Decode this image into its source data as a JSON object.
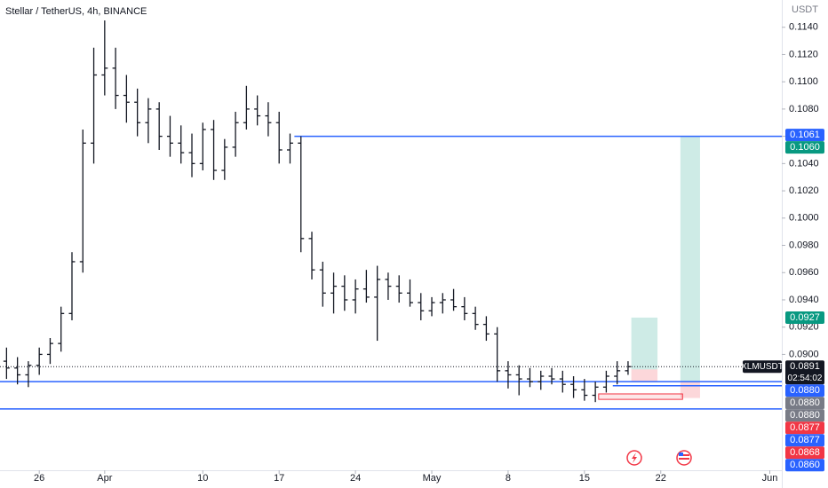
{
  "chart_data": {
    "type": "candlestick",
    "title": "Stellar / TetherUS, 4h, BINANCE",
    "axis_unit": "USDT",
    "x": [
      -3,
      -2,
      -1,
      0,
      1,
      2,
      3,
      4,
      5,
      6,
      7,
      8,
      9,
      10,
      11,
      12,
      13,
      14,
      15,
      16,
      17,
      18,
      19,
      20,
      21,
      22,
      23,
      24,
      25,
      26,
      27,
      28,
      29,
      30,
      31,
      32,
      33,
      34,
      35,
      36,
      37,
      38,
      39,
      40,
      41,
      42,
      43,
      44,
      45,
      46,
      47,
      48,
      49,
      50,
      51,
      52,
      53,
      54
    ],
    "open": [
      0.0895,
      0.089,
      0.0885,
      0.0892,
      0.09,
      0.0908,
      0.093,
      0.0968,
      0.1055,
      0.1105,
      0.111,
      0.109,
      0.1085,
      0.107,
      0.108,
      0.106,
      0.1055,
      0.1048,
      0.104,
      0.1065,
      0.1035,
      0.1052,
      0.107,
      0.108,
      0.1075,
      0.107,
      0.105,
      0.1055,
      0.0985,
      0.0962,
      0.0945,
      0.095,
      0.094,
      0.0948,
      0.0942,
      0.0955,
      0.095,
      0.0945,
      0.0938,
      0.0932,
      0.0938,
      0.094,
      0.0935,
      0.093,
      0.0922,
      0.0915,
      0.0888,
      0.0885,
      0.0882,
      0.088,
      0.0884,
      0.0882,
      0.0878,
      0.0874,
      0.087,
      0.0876,
      0.0884,
      0.0888
    ],
    "high": [
      0.0905,
      0.0898,
      0.0895,
      0.0905,
      0.0912,
      0.0935,
      0.0975,
      0.1065,
      0.1125,
      0.1145,
      0.1125,
      0.1105,
      0.1095,
      0.1088,
      0.1085,
      0.1075,
      0.1068,
      0.1062,
      0.107,
      0.1072,
      0.1058,
      0.1078,
      0.1097,
      0.109,
      0.1085,
      0.1078,
      0.1062,
      0.106,
      0.099,
      0.0968,
      0.096,
      0.0958,
      0.0955,
      0.0962,
      0.0965,
      0.096,
      0.0958,
      0.0955,
      0.0945,
      0.0942,
      0.0945,
      0.0948,
      0.0942,
      0.0935,
      0.0928,
      0.092,
      0.0895,
      0.0892,
      0.089,
      0.0888,
      0.089,
      0.0888,
      0.0884,
      0.0882,
      0.088,
      0.0888,
      0.0895,
      0.0895
    ],
    "low": [
      0.0882,
      0.0878,
      0.0876,
      0.0885,
      0.0893,
      0.0902,
      0.0925,
      0.096,
      0.104,
      0.109,
      0.108,
      0.107,
      0.106,
      0.1055,
      0.105,
      0.1045,
      0.104,
      0.103,
      0.1035,
      0.1028,
      0.1028,
      0.1045,
      0.1065,
      0.1068,
      0.106,
      0.104,
      0.104,
      0.0975,
      0.0955,
      0.0935,
      0.093,
      0.0932,
      0.093,
      0.0938,
      0.091,
      0.094,
      0.0938,
      0.0935,
      0.0925,
      0.0928,
      0.093,
      0.0932,
      0.0925,
      0.0918,
      0.091,
      0.088,
      0.0875,
      0.087,
      0.0876,
      0.0874,
      0.0878,
      0.0872,
      0.0868,
      0.0866,
      0.0865,
      0.0872,
      0.0878,
      0.0885
    ],
    "close": [
      0.089,
      0.0885,
      0.0892,
      0.09,
      0.0908,
      0.093,
      0.0968,
      0.1055,
      0.1105,
      0.111,
      0.109,
      0.1085,
      0.107,
      0.108,
      0.106,
      0.1055,
      0.1048,
      0.104,
      0.1065,
      0.1035,
      0.1052,
      0.107,
      0.108,
      0.1075,
      0.107,
      0.105,
      0.1055,
      0.0985,
      0.0962,
      0.0945,
      0.095,
      0.094,
      0.0948,
      0.0942,
      0.0955,
      0.095,
      0.0945,
      0.0938,
      0.0932,
      0.0938,
      0.094,
      0.0935,
      0.093,
      0.0922,
      0.0915,
      0.0888,
      0.0885,
      0.0882,
      0.088,
      0.0884,
      0.0882,
      0.0878,
      0.0874,
      0.087,
      0.0876,
      0.0884,
      0.0888,
      0.0891
    ],
    "color": "#131722",
    "xlim": [
      -3.6,
      68.1
    ],
    "ylim": [
      0.0815,
      0.116
    ],
    "xticks": [
      {
        "value": 0,
        "label": "26"
      },
      {
        "value": 6,
        "label": "Apr"
      },
      {
        "value": 15,
        "label": "10"
      },
      {
        "value": 22,
        "label": "17"
      },
      {
        "value": 29,
        "label": "24"
      },
      {
        "value": 36,
        "label": "May"
      },
      {
        "value": 43,
        "label": "8"
      },
      {
        "value": 50,
        "label": "15"
      },
      {
        "value": 57,
        "label": "22"
      },
      {
        "value": 67,
        "label": "Jun"
      }
    ],
    "yticks": [
      {
        "value": 0.114,
        "label": "0.1140"
      },
      {
        "value": 0.112,
        "label": "0.1120"
      },
      {
        "value": 0.11,
        "label": "0.1100"
      },
      {
        "value": 0.108,
        "label": "0.1080"
      },
      {
        "value": 0.106,
        "label": "0.1060"
      },
      {
        "value": 0.104,
        "label": "0.1040"
      },
      {
        "value": 0.102,
        "label": "0.1020"
      },
      {
        "value": 0.1,
        "label": "0.1000"
      },
      {
        "value": 0.098,
        "label": "0.0980"
      },
      {
        "value": 0.096,
        "label": "0.0960"
      },
      {
        "value": 0.094,
        "label": "0.0940"
      },
      {
        "value": 0.092,
        "label": "0.0920"
      },
      {
        "value": 0.09,
        "label": "0.0900"
      }
    ],
    "grid": false,
    "lines": [
      {
        "price": 0.106,
        "from": 23.4,
        "color": "#2962ff"
      },
      {
        "price": 0.088,
        "from": -3.6,
        "color": "#2962ff"
      },
      {
        "price": 0.0877,
        "from": 52.6,
        "color": "#2962ff"
      },
      {
        "price": 0.086,
        "from": -3.6,
        "color": "#2962ff"
      }
    ],
    "positions": [
      {
        "from": 54.3,
        "to": 56.7,
        "entry": 0.0889,
        "target": 0.0927,
        "stop": 0.088
      },
      {
        "from": 58.8,
        "to": 60.6,
        "entry": 0.088,
        "target": 0.106,
        "stop": 0.0868
      }
    ],
    "zone": {
      "from": 51.3,
      "to": 59.0,
      "top": 0.0871,
      "bottom": 0.0867,
      "color": "#f23645"
    },
    "current": {
      "symbol": "XLMUSDT",
      "value": 0.0891,
      "countdown": "02:54:02"
    },
    "price_tags": [
      {
        "value": 0.1061,
        "label": "0.1061",
        "color": "#2962ff"
      },
      {
        "value": 0.106,
        "label": "0.1060",
        "color": "#089981"
      },
      {
        "value": 0.0927,
        "label": "0.0927",
        "color": "#089981"
      },
      {
        "value": 0.088,
        "label": "0.0880",
        "color": "#2962ff"
      },
      {
        "value": 0.088,
        "label": "0.0880",
        "color": "#787b86"
      },
      {
        "value": 0.088,
        "label": "0.0880",
        "color": "#787b86"
      },
      {
        "value": 0.0877,
        "label": "0.0877",
        "color": "#f23645"
      },
      {
        "value": 0.0877,
        "label": "0.0877",
        "color": "#2962ff"
      },
      {
        "value": 0.0868,
        "label": "0.0868",
        "color": "#f23645"
      },
      {
        "value": 0.086,
        "label": "0.0860",
        "color": "#2962ff"
      }
    ]
  }
}
